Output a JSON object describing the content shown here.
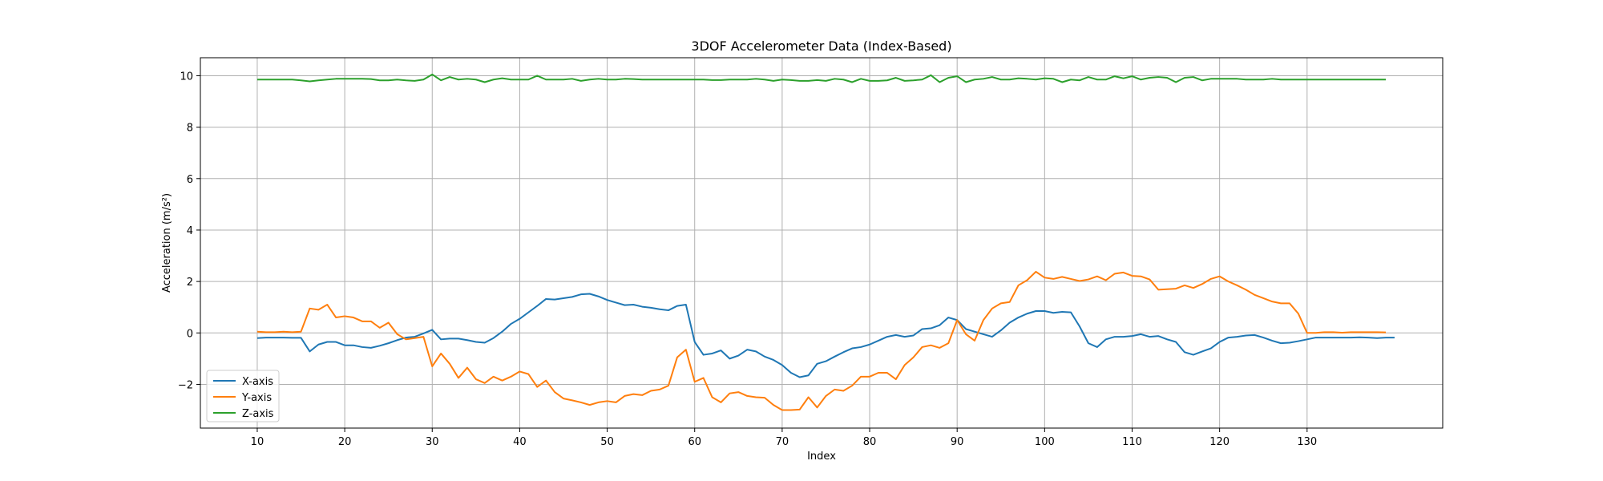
{
  "chart_data": {
    "type": "line",
    "title": "3DOF Accelerometer Data (Index-Based)",
    "xlabel": "Index",
    "ylabel": "Acceleration (m/s²)",
    "xlim": [
      3.5,
      145.5
    ],
    "ylim": [
      -3.7,
      10.7
    ],
    "x_ticks": [
      10,
      20,
      30,
      40,
      50,
      60,
      70,
      80,
      90,
      100,
      110,
      120,
      130
    ],
    "y_ticks": [
      -2,
      0,
      2,
      4,
      6,
      8,
      10
    ],
    "grid": true,
    "legend_position": "lower-left",
    "x_start": 10,
    "series": [
      {
        "name": "X-axis",
        "color": "#1f77b4",
        "values": [
          -0.2,
          -0.18,
          -0.18,
          -0.18,
          -0.19,
          -0.19,
          -0.72,
          -0.45,
          -0.35,
          -0.35,
          -0.48,
          -0.48,
          -0.55,
          -0.58,
          -0.5,
          -0.4,
          -0.28,
          -0.18,
          -0.15,
          -0.02,
          0.12,
          -0.25,
          -0.22,
          -0.22,
          -0.28,
          -0.35,
          -0.38,
          -0.2,
          0.05,
          0.35,
          0.55,
          0.8,
          1.05,
          1.32,
          1.3,
          1.35,
          1.4,
          1.5,
          1.52,
          1.42,
          1.28,
          1.18,
          1.08,
          1.1,
          1.02,
          0.98,
          0.92,
          0.88,
          1.05,
          1.1,
          -0.35,
          -0.85,
          -0.8,
          -0.68,
          -1.0,
          -0.88,
          -0.65,
          -0.72,
          -0.92,
          -1.05,
          -1.25,
          -1.55,
          -1.72,
          -1.65,
          -1.2,
          -1.1,
          -0.92,
          -0.75,
          -0.6,
          -0.55,
          -0.45,
          -0.3,
          -0.15,
          -0.08,
          -0.15,
          -0.1,
          0.15,
          0.18,
          0.3,
          0.6,
          0.5,
          0.15,
          0.05,
          -0.05,
          -0.15,
          0.1,
          0.4,
          0.6,
          0.75,
          0.85,
          0.85,
          0.78,
          0.82,
          0.8,
          0.25,
          -0.4,
          -0.55,
          -0.25,
          -0.15,
          -0.15,
          -0.12,
          -0.05,
          -0.15,
          -0.12,
          -0.25,
          -0.35,
          -0.75,
          -0.85,
          -0.72,
          -0.6,
          -0.35,
          -0.18,
          -0.15,
          -0.1,
          -0.08,
          -0.18,
          -0.3,
          -0.4,
          -0.38,
          -0.32,
          -0.25,
          -0.18,
          -0.18,
          -0.18,
          -0.18,
          -0.18,
          -0.17,
          -0.18,
          -0.2,
          -0.18,
          -0.18
        ]
      },
      {
        "name": "Y-axis",
        "color": "#ff7f0e",
        "values": [
          0.05,
          0.03,
          0.03,
          0.05,
          0.03,
          0.05,
          0.95,
          0.9,
          1.1,
          0.6,
          0.65,
          0.6,
          0.45,
          0.45,
          0.2,
          0.4,
          -0.05,
          -0.25,
          -0.2,
          -0.15,
          -1.3,
          -0.8,
          -1.2,
          -1.75,
          -1.35,
          -1.8,
          -1.95,
          -1.7,
          -1.85,
          -1.7,
          -1.5,
          -1.6,
          -2.1,
          -1.85,
          -2.3,
          -2.55,
          -2.62,
          -2.7,
          -2.8,
          -2.7,
          -2.65,
          -2.7,
          -2.45,
          -2.38,
          -2.42,
          -2.25,
          -2.2,
          -2.05,
          -0.95,
          -0.65,
          -1.9,
          -1.75,
          -2.5,
          -2.7,
          -2.35,
          -2.3,
          -2.45,
          -2.5,
          -2.52,
          -2.8,
          -3.0,
          -3.0,
          -2.98,
          -2.5,
          -2.9,
          -2.45,
          -2.2,
          -2.25,
          -2.05,
          -1.7,
          -1.7,
          -1.55,
          -1.55,
          -1.8,
          -1.25,
          -0.95,
          -0.55,
          -0.48,
          -0.58,
          -0.4,
          0.5,
          -0.05,
          -0.3,
          0.5,
          0.95,
          1.15,
          1.2,
          1.85,
          2.05,
          2.38,
          2.15,
          2.1,
          2.18,
          2.1,
          2.02,
          2.08,
          2.2,
          2.05,
          2.3,
          2.35,
          2.22,
          2.2,
          2.08,
          1.68,
          1.7,
          1.72,
          1.85,
          1.75,
          1.9,
          2.1,
          2.2,
          2.0,
          1.85,
          1.68,
          1.48,
          1.35,
          1.22,
          1.15,
          1.15,
          0.75,
          0.0,
          0.0,
          0.03,
          0.03,
          0.01,
          0.03,
          0.03,
          0.03,
          0.03,
          0.02
        ]
      },
      {
        "name": "Z-axis",
        "color": "#2ca02c",
        "values": [
          9.85,
          9.85,
          9.85,
          9.85,
          9.85,
          9.82,
          9.78,
          9.82,
          9.85,
          9.88,
          9.88,
          9.88,
          9.88,
          9.87,
          9.82,
          9.82,
          9.85,
          9.82,
          9.8,
          9.85,
          10.05,
          9.82,
          9.95,
          9.85,
          9.88,
          9.85,
          9.75,
          9.85,
          9.9,
          9.85,
          9.85,
          9.85,
          10.0,
          9.85,
          9.85,
          9.85,
          9.88,
          9.8,
          9.85,
          9.88,
          9.85,
          9.85,
          9.88,
          9.87,
          9.85,
          9.85,
          9.85,
          9.85,
          9.85,
          9.85,
          9.85,
          9.85,
          9.83,
          9.83,
          9.85,
          9.85,
          9.85,
          9.88,
          9.85,
          9.8,
          9.85,
          9.83,
          9.8,
          9.8,
          9.83,
          9.8,
          9.88,
          9.85,
          9.75,
          9.88,
          9.8,
          9.8,
          9.82,
          9.92,
          9.8,
          9.82,
          9.85,
          10.02,
          9.75,
          9.92,
          9.98,
          9.75,
          9.85,
          9.88,
          9.95,
          9.85,
          9.85,
          9.9,
          9.88,
          9.85,
          9.9,
          9.88,
          9.75,
          9.85,
          9.82,
          9.95,
          9.85,
          9.85,
          9.98,
          9.9,
          9.98,
          9.85,
          9.92,
          9.95,
          9.92,
          9.75,
          9.92,
          9.95,
          9.82,
          9.88,
          9.88,
          9.88,
          9.88,
          9.85,
          9.85,
          9.85,
          9.88,
          9.85,
          9.85,
          9.85,
          9.85,
          9.85,
          9.85,
          9.85,
          9.85,
          9.85,
          9.85,
          9.85,
          9.85,
          9.85
        ]
      }
    ]
  }
}
